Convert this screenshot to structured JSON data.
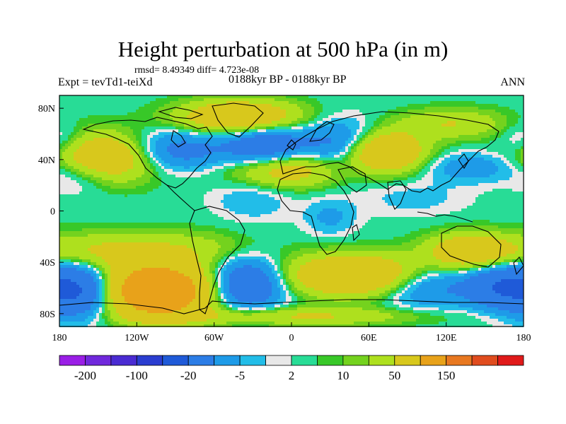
{
  "header": {
    "title": "Height perturbation at 500 hPa (in m)",
    "stats": "rmsd= 8.49349 diff= 4.723e-08",
    "expt": "Expt = tevTd1-teiXd",
    "period": "0188kyr BP - 0188kyr BP",
    "season": "ANN"
  },
  "chart_data": {
    "type": "heatmap",
    "title": "Height perturbation at 500 hPa (in m)",
    "xlim": [
      -180,
      180
    ],
    "ylim": [
      -90,
      90
    ],
    "x_ticks": [
      {
        "value": -180,
        "label": "180"
      },
      {
        "value": -120,
        "label": "120W"
      },
      {
        "value": -60,
        "label": "60W"
      },
      {
        "value": 0,
        "label": "0"
      },
      {
        "value": 60,
        "label": "60E"
      },
      {
        "value": 120,
        "label": "120E"
      },
      {
        "value": 180,
        "label": "180"
      }
    ],
    "y_ticks": [
      {
        "value": 80,
        "label": "80N"
      },
      {
        "value": 40,
        "label": "40N"
      },
      {
        "value": 0,
        "label": "0"
      },
      {
        "value": -40,
        "label": "40S"
      },
      {
        "value": -80,
        "label": "80S"
      }
    ],
    "colorbar": {
      "colors": [
        "#9a1ee6",
        "#7028dc",
        "#4a2bd2",
        "#2a3dd0",
        "#1f5ad8",
        "#2c7de6",
        "#1e9be8",
        "#22bde8",
        "#e8e8e8",
        "#28dc96",
        "#38c828",
        "#74d21e",
        "#aee01e",
        "#d8c81c",
        "#e8a21a",
        "#e87820",
        "#e04c1e",
        "#e01a1a"
      ],
      "labels": [
        {
          "index": 1,
          "text": "-200"
        },
        {
          "index": 3,
          "text": "-100"
        },
        {
          "index": 5,
          "text": "-20"
        },
        {
          "index": 7,
          "text": "-5"
        },
        {
          "index": 9,
          "text": "2"
        },
        {
          "index": 11,
          "text": "10"
        },
        {
          "index": 13,
          "text": "50"
        },
        {
          "index": 15,
          "text": "150"
        }
      ]
    },
    "anomalies": [
      {
        "lon": -145,
        "lat": 42,
        "amp": 45,
        "slon": 28,
        "slat": 13
      },
      {
        "lon": -40,
        "lat": 73,
        "amp": 48,
        "slon": 32,
        "slat": 9
      },
      {
        "lon": -90,
        "lat": 47,
        "amp": -30,
        "slon": 28,
        "slat": 11
      },
      {
        "lon": -20,
        "lat": 50,
        "amp": -42,
        "slon": 22,
        "slat": 12
      },
      {
        "lon": 40,
        "lat": 50,
        "amp": -32,
        "slon": 22,
        "slat": 14
      },
      {
        "lon": -5,
        "lat": 33,
        "amp": 38,
        "slon": 30,
        "slat": 10
      },
      {
        "lon": 70,
        "lat": 46,
        "amp": 55,
        "slon": 22,
        "slat": 11
      },
      {
        "lon": 125,
        "lat": 68,
        "amp": 20,
        "slon": 30,
        "slat": 8
      },
      {
        "lon": 140,
        "lat": 34,
        "amp": -18,
        "slon": 25,
        "slat": 8
      },
      {
        "lon": -165,
        "lat": 28,
        "amp": -14,
        "slon": 18,
        "slat": 10
      },
      {
        "lon": -180,
        "lat": 55,
        "amp": -14,
        "slon": 14,
        "slat": 10
      },
      {
        "lon": -30,
        "lat": 10,
        "amp": -10,
        "slon": 22,
        "slat": 12
      },
      {
        "lon": 95,
        "lat": 10,
        "amp": -7,
        "slon": 30,
        "slat": 10
      },
      {
        "lon": 30,
        "lat": -5,
        "amp": -12,
        "slon": 14,
        "slat": 10
      },
      {
        "lon": -85,
        "lat": -30,
        "amp": 16,
        "slon": 38,
        "slat": 10
      },
      {
        "lon": -150,
        "lat": -32,
        "amp": 20,
        "slon": 30,
        "slat": 10
      },
      {
        "lon": 140,
        "lat": -32,
        "amp": 42,
        "slon": 24,
        "slat": 10
      },
      {
        "lon": 50,
        "lat": -50,
        "amp": 52,
        "slon": 38,
        "slat": 11
      },
      {
        "lon": -105,
        "lat": -62,
        "amp": 95,
        "slon": 30,
        "slat": 14
      },
      {
        "lon": -165,
        "lat": -62,
        "amp": -60,
        "slon": 20,
        "slat": 14
      },
      {
        "lon": -35,
        "lat": -57,
        "amp": -48,
        "slon": 20,
        "slat": 14
      },
      {
        "lon": 105,
        "lat": -58,
        "amp": -28,
        "slon": 26,
        "slat": 12
      },
      {
        "lon": 160,
        "lat": -58,
        "amp": -40,
        "slon": 18,
        "slat": 12
      },
      {
        "lon": 0,
        "lat": -82,
        "amp": 22,
        "slon": 70,
        "slat": 5
      }
    ]
  }
}
